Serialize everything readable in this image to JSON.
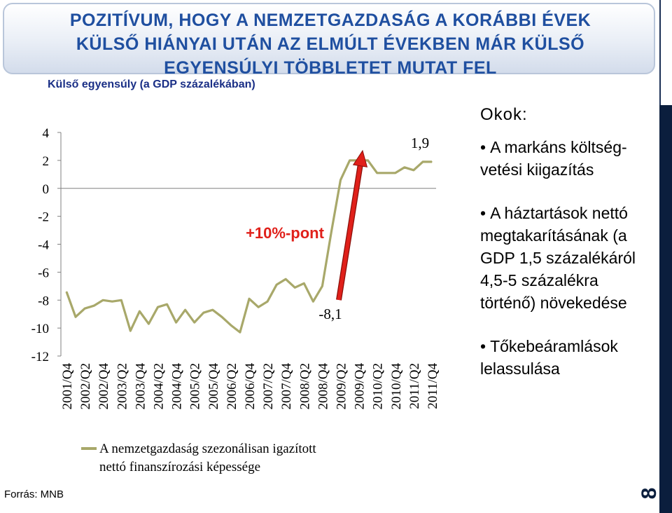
{
  "header": {
    "title_lines": [
      "POZITÍVUM, HOGY A NEMZETGAZDASÁG A KORÁBBI ÉVEK",
      "KÜLSŐ HIÁNYAI UTÁN AZ ELMÚLT ÉVEKBEN MÁR KÜLSŐ",
      "EGYENSÚLYI TÖBBLETET MUTAT FEL"
    ]
  },
  "subtitle": "Külső egyensúly (a GDP százalékában)",
  "source": "Forrás: MNB",
  "page_number": "8",
  "reasons": {
    "heading": "Okok:",
    "items": [
      "A markáns költség-vetési kiigazítás",
      "A háztartások nettó megtakarításának (a GDP 1,5 százalékáról 4,5-5 százalékra történő) növekedése",
      "Tőkebeáramlások lelassulása"
    ]
  },
  "colors": {
    "title": "#1f4fa0",
    "series": "#a8a86a",
    "arrow": "#e0201a",
    "annotation": "#e0201a",
    "right_bar": "#0b1e3d"
  },
  "chart_data": {
    "type": "line",
    "title": "",
    "ylim": [
      -12,
      4
    ],
    "yticks": [
      "4",
      "2",
      "0",
      "-2",
      "-4",
      "-6",
      "-8",
      "-10",
      "-12"
    ],
    "ytick_values": [
      4,
      2,
      0,
      -2,
      -4,
      -6,
      -8,
      -10,
      -12
    ],
    "grid": false,
    "legend_position": "bottom",
    "x_tick_labels": [
      "2001/Q4",
      "2002/Q2",
      "2002/Q4",
      "2003/Q2",
      "2003/Q4",
      "2004/Q2",
      "2004/Q4",
      "2005/Q2",
      "2005/Q4",
      "2006/Q2",
      "2006/Q4",
      "2007/Q2",
      "2007/Q4",
      "2008/Q2",
      "2008/Q4",
      "2009/Q2",
      "2009/Q4",
      "2010/Q2",
      "2010/Q4",
      "2011/Q2",
      "2011/Q4"
    ],
    "series": [
      {
        "name": "A nemzetgazdaság szezonálisan igazított nettó finanszírozási képessége",
        "values": [
          -7.4,
          -9.2,
          -8.6,
          -8.4,
          -8.0,
          -8.1,
          -8.0,
          -10.2,
          -8.8,
          -9.7,
          -8.5,
          -8.3,
          -9.6,
          -8.7,
          -9.6,
          -8.9,
          -8.7,
          -9.2,
          -9.8,
          -10.3,
          -7.9,
          -8.5,
          -8.1,
          -6.9,
          -6.5,
          -7.1,
          -6.8,
          -8.1,
          -7.0,
          -3.1,
          0.6,
          2.0,
          2.0,
          2.0,
          1.1,
          1.1,
          1.1,
          1.5,
          1.3,
          1.9,
          1.9
        ]
      }
    ],
    "annotations": [
      {
        "text": "1,9"
      },
      {
        "text": "-8,1"
      },
      {
        "text": "+10%-pont"
      }
    ]
  }
}
